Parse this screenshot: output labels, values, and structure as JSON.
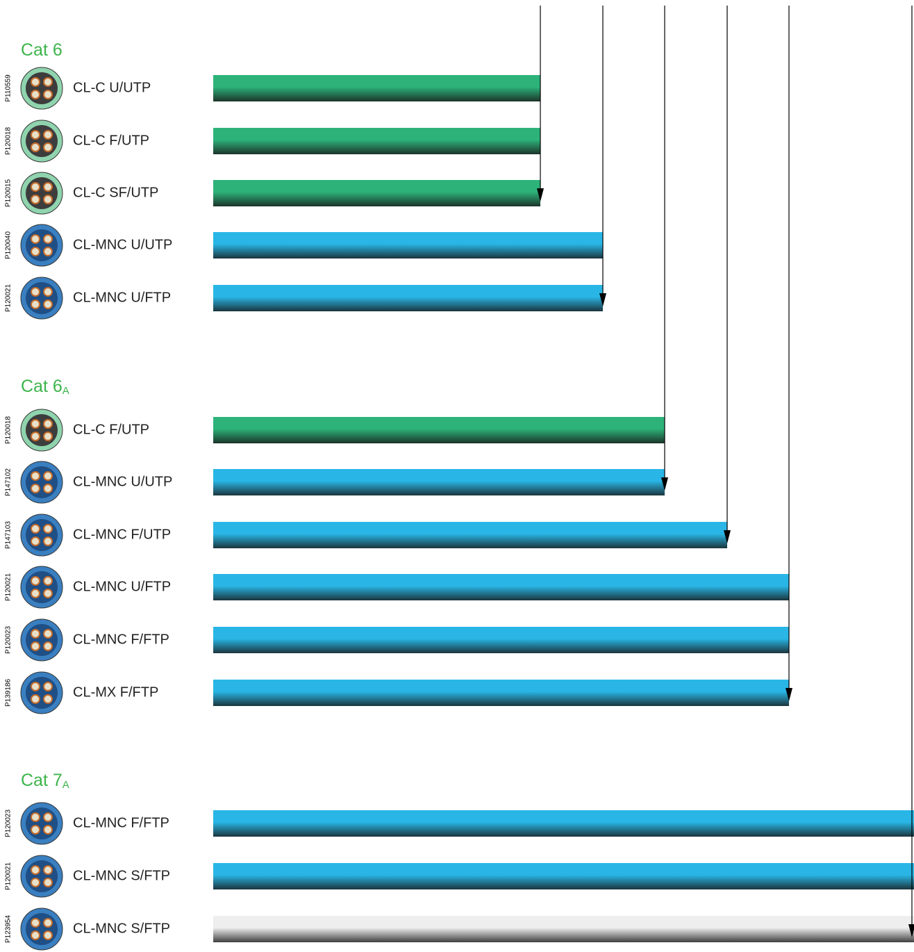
{
  "chart_data": {
    "type": "bar",
    "xlim": [
      0,
      1009
    ],
    "groups": [
      {
        "title": "Cat 6",
        "subscript": null,
        "rows": [
          {
            "code": "P110559",
            "name": "CL-C U/UTP",
            "value": 471,
            "color": "#2db37a"
          },
          {
            "code": "P120018",
            "name": "CL-C F/UTP",
            "value": 471,
            "color": "#2db37a"
          },
          {
            "code": "P120015",
            "name": "CL-C SF/UTP",
            "value": 471,
            "color": "#2db37a"
          },
          {
            "code": "P120040",
            "name": "CL-MNC U/UTP",
            "value": 561,
            "color": "#29b6e6"
          },
          {
            "code": "P120021",
            "name": "CL-MNC U/FTP",
            "value": 561,
            "color": "#29b6e6"
          }
        ]
      },
      {
        "title": "Cat 6",
        "subscript": "A",
        "rows": [
          {
            "code": "P120018",
            "name": "CL-C F/UTP",
            "value": 650,
            "color": "#2db37a"
          },
          {
            "code": "P147102",
            "name": "CL-MNC U/UTP",
            "value": 650,
            "color": "#29b6e6"
          },
          {
            "code": "P147103",
            "name": "CL-MNC F/UTP",
            "value": 740,
            "color": "#29b6e6"
          },
          {
            "code": "P120021",
            "name": "CL-MNC U/FTP",
            "value": 829,
            "color": "#29b6e6"
          },
          {
            "code": "P120023",
            "name": "CL-MNC F/FTP",
            "value": 829,
            "color": "#29b6e6"
          },
          {
            "code": "P139186",
            "name": "CL-MX F/FTP",
            "value": 829,
            "color": "#29b6e6"
          }
        ]
      },
      {
        "title": "Cat 7",
        "subscript": "A",
        "rows": [
          {
            "code": "P120023",
            "name": "CL-MNC F/FTP",
            "value": 1009,
            "color": "#29b6e6"
          },
          {
            "code": "P120021",
            "name": "CL-MNC S/FTP",
            "value": 1009,
            "color": "#29b6e6"
          },
          {
            "code": "P123954",
            "name": "CL-MNC S/FTP",
            "value": 1009,
            "color": "#eeeeee"
          }
        ]
      }
    ]
  }
}
